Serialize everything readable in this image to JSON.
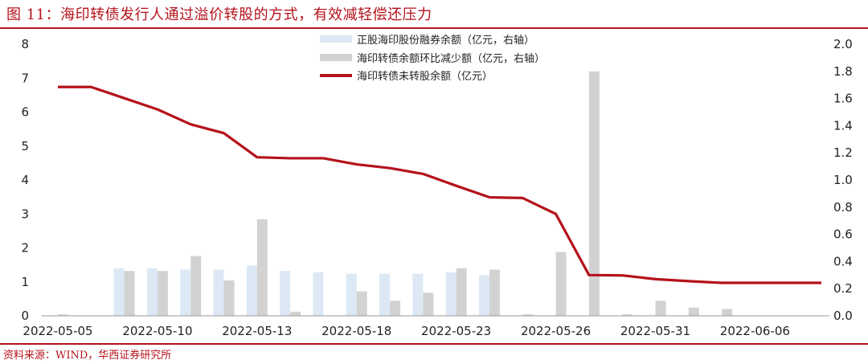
{
  "header": {
    "title": "图 11：海印转债发行人通过溢价转股的方式，有效减轻偿还压力"
  },
  "footer": {
    "source": "资料来源：WIND，华西证券研究所"
  },
  "colors": {
    "accent": "#b5121b",
    "series_margin": "#dce9f5",
    "series_decrease": "#d2d2d2",
    "series_balance": "#b5121b"
  },
  "chart_data": {
    "type": "bar",
    "legend_position": "top-center",
    "grid": false,
    "x_tick_labels": [
      "2022-05-05",
      "2022-05-10",
      "2022-05-13",
      "2022-05-18",
      "2022-05-23",
      "2022-05-26",
      "2022-05-31",
      "2022-06-06"
    ],
    "y_left": {
      "range": [
        0,
        8
      ],
      "ticks": [
        "0",
        "1",
        "2",
        "3",
        "4",
        "5",
        "6",
        "7",
        "8"
      ]
    },
    "y_right": {
      "range": [
        0,
        2.0
      ],
      "ticks": [
        "0.0",
        "0.2",
        "0.4",
        "0.6",
        "0.8",
        "1.0",
        "1.2",
        "1.4",
        "1.6",
        "1.8",
        "2.0"
      ]
    },
    "dates": [
      "2022-05-05",
      "2022-05-06",
      "2022-05-09",
      "2022-05-10",
      "2022-05-11",
      "2022-05-12",
      "2022-05-13",
      "2022-05-16",
      "2022-05-17",
      "2022-05-18",
      "2022-05-19",
      "2022-05-20",
      "2022-05-23",
      "2022-05-24",
      "2022-05-25",
      "2022-05-26",
      "2022-05-27",
      "2022-05-30",
      "2022-05-31",
      "2022-06-01",
      "2022-06-02",
      "2022-06-06",
      "2022-06-07",
      "2022-06-08"
    ],
    "series": [
      {
        "name": "正股海印股份融券余额（亿元，右轴）",
        "kind": "bar",
        "axis": "right",
        "values": [
          0,
          0,
          0.35,
          0.35,
          0.34,
          0.34,
          0.37,
          0.33,
          0.32,
          0.31,
          0.31,
          0.31,
          0.32,
          0.3,
          0,
          0,
          0,
          0,
          0,
          0,
          0,
          0,
          0,
          0
        ]
      },
      {
        "name": "海印转债余额环比减少额（亿元，右轴）",
        "kind": "bar",
        "axis": "right",
        "values": [
          0.01,
          0,
          0.33,
          0.33,
          0.44,
          0.26,
          0.71,
          0.03,
          0,
          0.18,
          0.11,
          0.17,
          0.35,
          0.34,
          0.01,
          0.47,
          1.8,
          0.01,
          0.11,
          0.06,
          0.05,
          0,
          0,
          0
        ]
      },
      {
        "name": "海印转债未转股余额（亿元）",
        "kind": "line",
        "axis": "left",
        "values": [
          6.74,
          6.74,
          6.41,
          6.08,
          5.64,
          5.38,
          4.67,
          4.64,
          4.64,
          4.46,
          4.35,
          4.18,
          3.83,
          3.49,
          3.47,
          3.0,
          1.2,
          1.19,
          1.08,
          1.02,
          0.97,
          0.97,
          0.97,
          0.97
        ]
      }
    ]
  }
}
